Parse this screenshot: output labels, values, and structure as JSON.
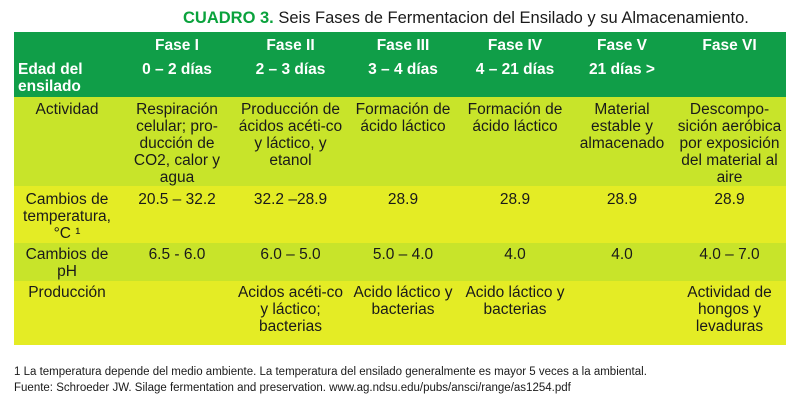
{
  "title": {
    "label": "CUADRO 3.",
    "text": " Seis Fases de Fermentacion del Ensilado y su Almacenamiento."
  },
  "header": {
    "corner": "Edad del ensilado",
    "phases": [
      "Fase I",
      "Fase II",
      "Fase III",
      "Fase IV",
      "Fase V",
      "Fase VI"
    ],
    "ages": [
      "0 – 2 días",
      "2 – 3 días",
      "3 – 4 días",
      "4 – 21 días",
      "21 días >",
      ""
    ]
  },
  "rows": [
    {
      "label": "Actividad",
      "cells": [
        "Respiración celular; pro-ducción de CO2, calor y agua",
        "Producción de ácidos acéti-co y láctico, y etanol",
        "Formación de ácido láctico",
        "Formación de ácido láctico",
        "Material estable y almacenado",
        "Descompo-sición aeróbica por exposición del material al aire"
      ]
    },
    {
      "label": "Cambios de temperatura, °C ¹",
      "cells": [
        "20.5 – 32.2",
        "32.2 –28.9",
        "28.9",
        "28.9",
        "28.9",
        "28.9"
      ]
    },
    {
      "label": "Cambios de pH",
      "cells": [
        "6.5 - 6.0",
        "6.0 – 5.0",
        "5.0 – 4.0",
        "4.0",
        "4.0",
        "4.0 – 7.0"
      ]
    },
    {
      "label": "Producción",
      "cells": [
        "",
        "Acidos acéti-co y láctico; bacterias",
        "Acido láctico y bacterias",
        "Acido láctico y bacterias",
        "",
        "Actividad de hongos y levaduras"
      ]
    }
  ],
  "footnotes": [
    "1 La temperatura depende del medio ambiente. La temperatura del ensilado generalmente es mayor 5 veces a la ambiental.",
    "Fuente: Schroeder JW. Silage fermentation and preservation. www.ag.ndsu.edu/pubs/ansci/range/as1254.pdf"
  ],
  "colors": {
    "header_green": "#109e48",
    "title_green": "#0aa23c",
    "row_light": "#c8e42a",
    "row_bright": "#e4ec25"
  }
}
